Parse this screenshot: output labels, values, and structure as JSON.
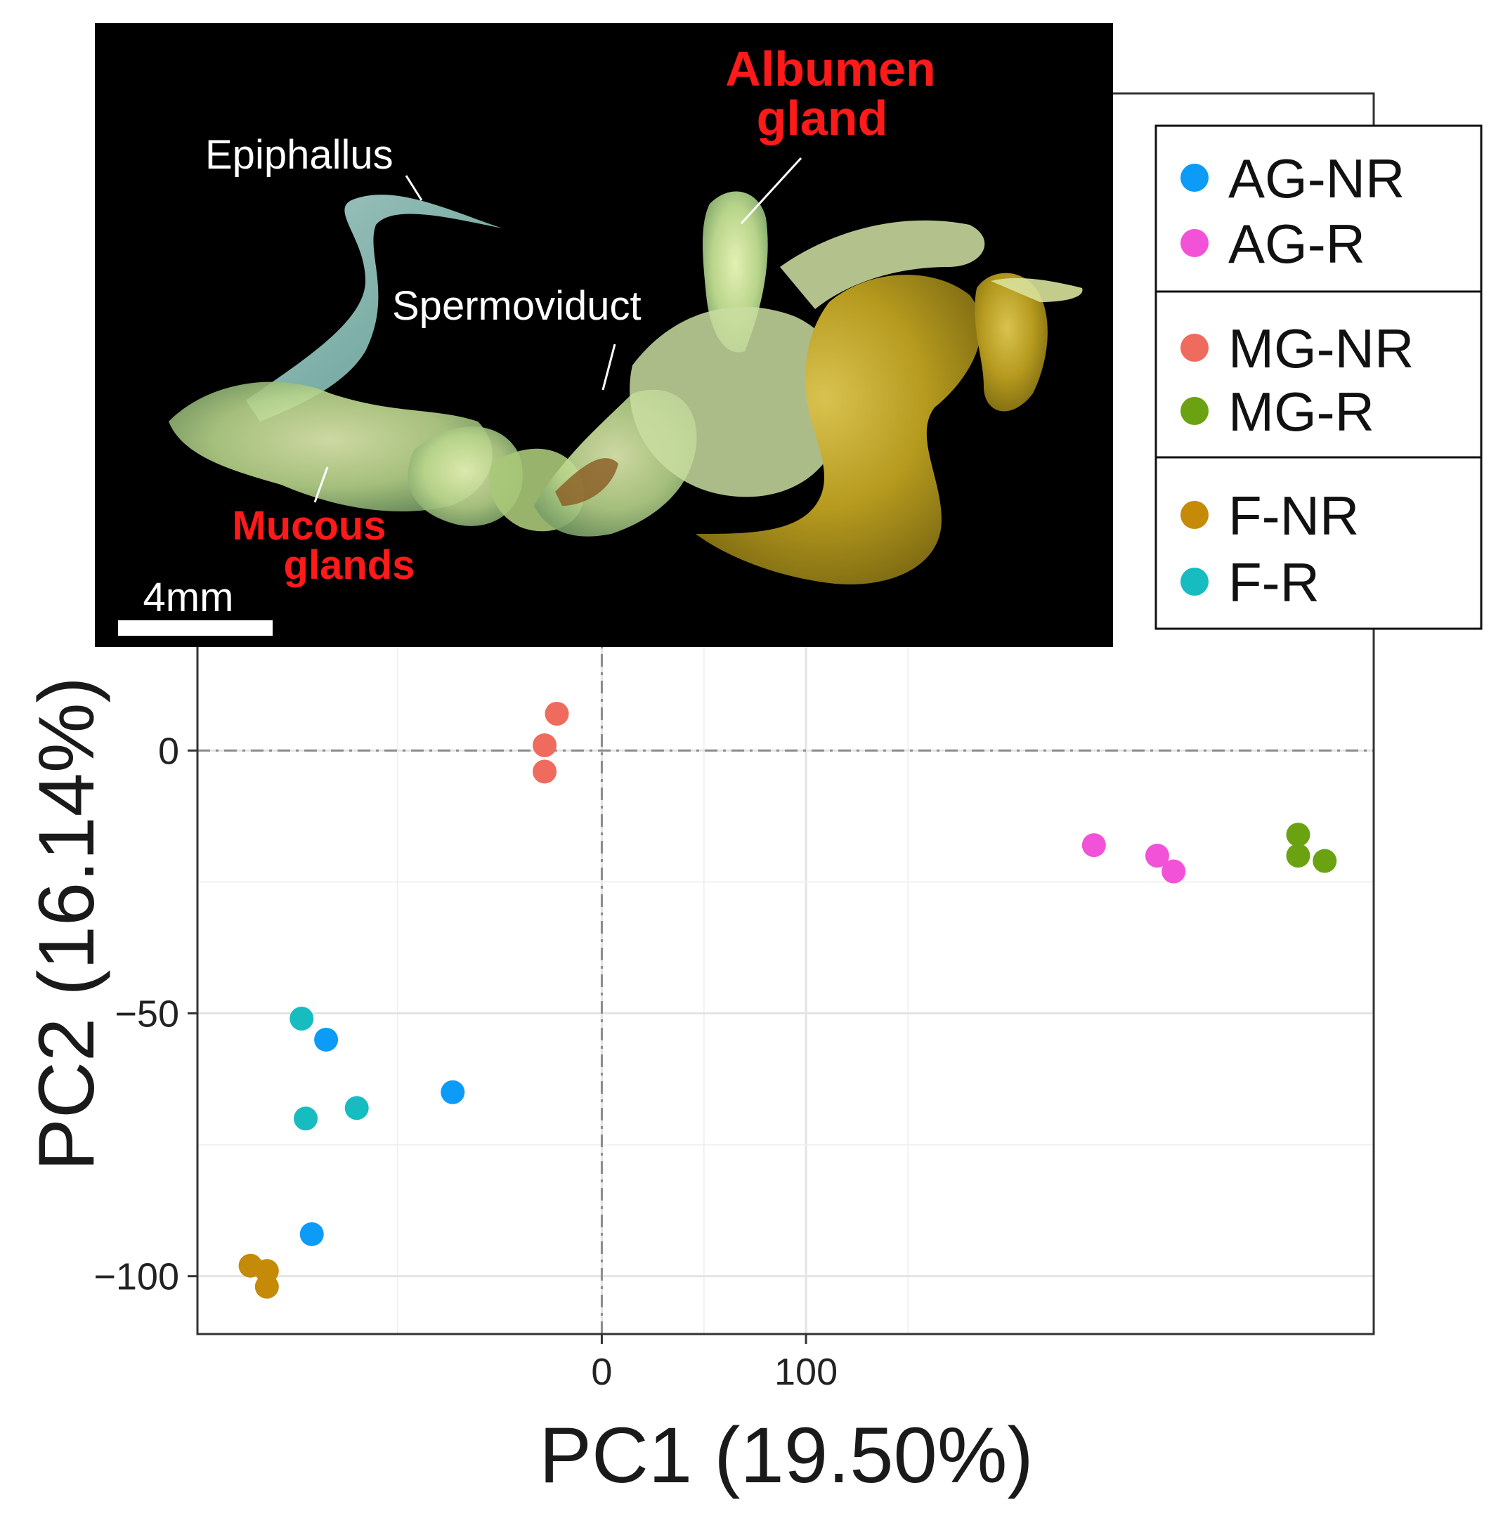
{
  "chart_data": {
    "type": "scatter",
    "title": "",
    "xlabel": "PC1 (19.50%)",
    "ylabel": "PC2 (16.14%)",
    "xlim": [
      -198,
      378
    ],
    "ylim": [
      -111,
      125
    ],
    "x_ticks": [
      0,
      100
    ],
    "x_tick_labels": [
      "0",
      "100"
    ],
    "y_ticks": [
      0,
      -50,
      -100
    ],
    "y_tick_labels": [
      "0",
      "−50",
      "−100"
    ],
    "x_minor_gridlines": [
      -100,
      50,
      150
    ],
    "y_minor_gridlines": [
      -25,
      -75
    ],
    "reference_lines": {
      "x": 0,
      "y": 0,
      "style": "dash-dot"
    },
    "grid": true,
    "legend_position": "top-right",
    "series": [
      {
        "name": "AG-NR",
        "color": "#0C9BF6",
        "points": [
          [
            -135,
            -55
          ],
          [
            -73,
            -65
          ],
          [
            -142,
            -92
          ]
        ]
      },
      {
        "name": "AG-R",
        "color": "#F252D8",
        "points": [
          [
            241,
            -18
          ],
          [
            272,
            -20
          ],
          [
            280,
            -23
          ]
        ]
      },
      {
        "name": "MG-NR",
        "color": "#EE6B5E",
        "points": [
          [
            -22,
            7
          ],
          [
            -28,
            1
          ],
          [
            -28,
            -4
          ]
        ]
      },
      {
        "name": "MG-R",
        "color": "#6BA212",
        "points": [
          [
            341,
            -16
          ],
          [
            341,
            -20
          ],
          [
            354,
            -21
          ]
        ]
      },
      {
        "name": "F-NR",
        "color": "#C48A08",
        "points": [
          [
            -172,
            -98
          ],
          [
            -164,
            -99
          ],
          [
            -164,
            -102
          ]
        ]
      },
      {
        "name": "F-R",
        "color": "#17BCC0",
        "points": [
          [
            -147,
            -51
          ],
          [
            -145,
            -70
          ],
          [
            -120,
            -68
          ]
        ]
      }
    ]
  },
  "inset": {
    "labels": {
      "epiphallus": "Epiphallus",
      "albumen_line1": "Albumen",
      "albumen_line2": "gland",
      "spermoviduct": "Spermoviduct",
      "mucous_line1": "Mucous",
      "mucous_line2": "glands",
      "scale": "4mm"
    }
  },
  "colors": {
    "annotation_red": "#FF1A1A",
    "annotation_white": "#FFFFFF",
    "inset_background": "#000000"
  }
}
